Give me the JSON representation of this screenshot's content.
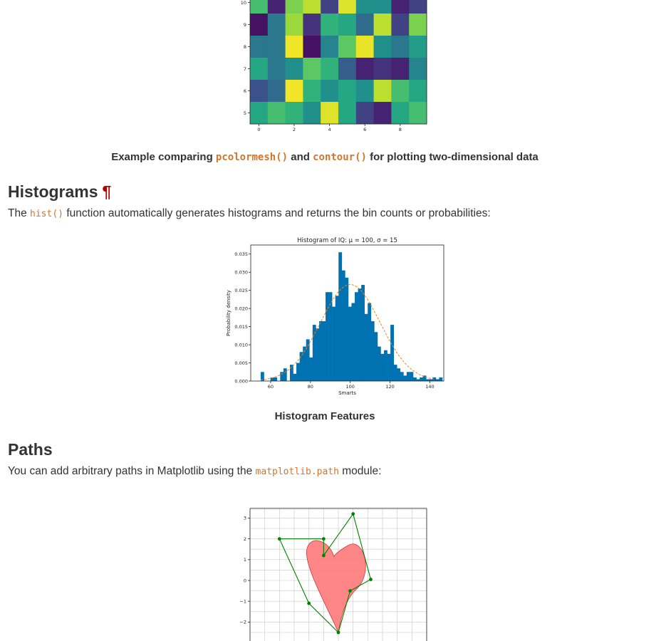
{
  "figures": {
    "heatmap": {
      "caption_before": "Example comparing",
      "caption_code1": "pcolormesh()",
      "caption_mid": "and",
      "caption_code2": "contour()",
      "caption_after": "for plotting two-dimensional data"
    },
    "histogram": {
      "caption": "Histogram Features"
    }
  },
  "sections": {
    "histograms": {
      "title": "Histograms",
      "anchor": "¶",
      "text_before": "The",
      "code": "hist()",
      "text_after": "function automatically generates histograms and returns the bin counts or probabilities:"
    },
    "paths": {
      "title": "Paths",
      "text_before": "You can add arbitrary paths in Matplotlib using the",
      "code": "matplotlib.path",
      "text_after": "module:"
    }
  },
  "chart_data": [
    {
      "type": "heatmap",
      "title": "",
      "xlabel": "",
      "ylabel": "",
      "x_ticks": [
        "0",
        "2",
        "4",
        "6",
        "8"
      ],
      "y_ticks": [
        "5",
        "6",
        "7",
        "8",
        "9",
        "10"
      ],
      "xlim": [
        -0.5,
        9.5
      ],
      "ylim": [
        4.5,
        10.5
      ],
      "colormap": "viridis",
      "rows_top_to_bottom": [
        [
          0.7,
          0.1,
          0.8,
          0.9,
          0.2,
          0.95,
          0.5,
          0.5,
          0.1,
          0.2
        ],
        [
          0.05,
          0.4,
          0.85,
          0.15,
          0.65,
          0.6,
          0.35,
          0.9,
          0.2,
          0.8
        ],
        [
          0.4,
          0.4,
          0.98,
          0.05,
          0.45,
          0.75,
          0.97,
          0.5,
          0.4,
          0.55
        ],
        [
          0.6,
          0.4,
          0.5,
          0.75,
          0.65,
          0.3,
          0.1,
          0.15,
          0.1,
          0.45
        ],
        [
          0.25,
          0.35,
          0.98,
          0.65,
          0.5,
          0.6,
          0.5,
          0.9,
          0.7,
          0.6
        ],
        [
          0.6,
          0.7,
          0.65,
          0.5,
          0.95,
          0.6,
          0.2,
          0.1,
          0.6,
          0.7
        ]
      ]
    },
    {
      "type": "bar",
      "title": "Histogram of IQ: μ = 100, σ = 15",
      "xlabel": "Smarts",
      "ylabel": "Probability density",
      "xlim": [
        50,
        147
      ],
      "ylim": [
        0,
        0.0375
      ],
      "x_ticks": [
        60,
        80,
        100,
        120,
        140
      ],
      "y_ticks": [
        "0.000",
        "0.005",
        "0.010",
        "0.015",
        "0.020",
        "0.025",
        "0.030",
        "0.035"
      ],
      "bin_start": 55,
      "bin_width": 1.63,
      "values": [
        0.0025,
        0,
        0,
        0.001,
        0.001,
        0,
        0.0025,
        0.0035,
        0,
        0.0045,
        0.002,
        0.005,
        0.008,
        0.0095,
        0.0115,
        0.0065,
        0.0155,
        0.0145,
        0.0165,
        0.0165,
        0.0245,
        0.0245,
        0.0205,
        0.0235,
        0.0355,
        0.0305,
        0.0285,
        0.0205,
        0.0215,
        0.0245,
        0.0255,
        0.0265,
        0.0185,
        0.0215,
        0.0165,
        0.0135,
        0.0095,
        0.0075,
        0.0085,
        0.0075,
        0.0155,
        0.0045,
        0.0035,
        0.0025,
        0.0015,
        0.0025,
        0.0025,
        0.001,
        0.0005,
        0.001,
        0.0015,
        0.0005,
        0.0005,
        0.001,
        0.0005,
        0.001
      ],
      "pdf_curve": {
        "mu": 100,
        "sigma": 15,
        "color": "#ff7f0e"
      },
      "bar_color": "#0072b2"
    },
    {
      "type": "path",
      "title": "",
      "xlabel": "",
      "ylabel": "",
      "y_ticks": [
        "3",
        "2",
        "1",
        "0",
        "−1",
        "−2"
      ],
      "xlim": [
        -3,
        3
      ],
      "ylim": [
        -2.6,
        3.5
      ],
      "fill_color": "#ff7f7f",
      "edge_color": "#008000",
      "control_points": [
        [
          0.0,
          -2.5
        ],
        [
          0.4,
          -0.5
        ],
        [
          1.1,
          0.05
        ],
        [
          0.5,
          3.2
        ],
        [
          -0.5,
          1.2
        ],
        [
          -0.5,
          2.0
        ],
        [
          -2.0,
          2.0
        ],
        [
          -1.0,
          -1.1
        ]
      ]
    }
  ]
}
